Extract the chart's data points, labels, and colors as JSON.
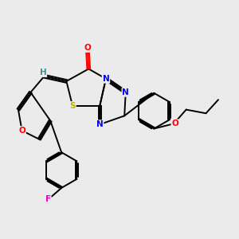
{
  "bg_color": "#ebebeb",
  "bond_color": "#000000",
  "atoms": {
    "O_carbonyl": {
      "label": "O",
      "color": "#ff0000"
    },
    "H_exo": {
      "label": "H",
      "color": "#4a9090"
    },
    "S": {
      "label": "S",
      "color": "#b8b800"
    },
    "N1": {
      "label": "N",
      "color": "#0000ee"
    },
    "N2": {
      "label": "N",
      "color": "#0000ee"
    },
    "N3": {
      "label": "N",
      "color": "#0000ee"
    },
    "O_furan": {
      "label": "O",
      "color": "#ff0000"
    },
    "F": {
      "label": "F",
      "color": "#ff00cc"
    },
    "O_butoxy": {
      "label": "O",
      "color": "#ff0000"
    }
  }
}
